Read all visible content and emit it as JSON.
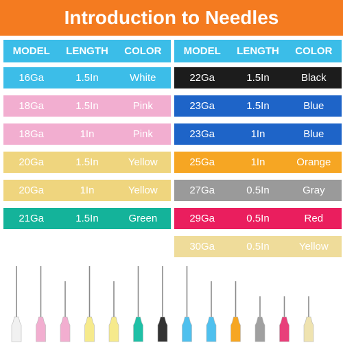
{
  "title": "Introduction to Needles",
  "left_table": {
    "headers": [
      "MODEL",
      "LENGTH",
      "COLOR"
    ],
    "rows": [
      {
        "model": "16Ga",
        "length": "1.5In",
        "color": "White",
        "bg": "#3cbde8",
        "fg": "#ffffff"
      },
      {
        "model": "18Ga",
        "length": "1.5In",
        "color": "Pink",
        "bg": "#f2aed0",
        "fg": "#ffffff"
      },
      {
        "model": "18Ga",
        "length": "1In",
        "color": "Pink",
        "bg": "#f2aed0",
        "fg": "#ffffff"
      },
      {
        "model": "20Ga",
        "length": "1.5In",
        "color": "Yellow",
        "bg": "#efd57e",
        "fg": "#ffffff"
      },
      {
        "model": "20Ga",
        "length": "1In",
        "color": "Yellow",
        "bg": "#efd57e",
        "fg": "#ffffff"
      },
      {
        "model": "21Ga",
        "length": "1.5In",
        "color": "Green",
        "bg": "#14b39a",
        "fg": "#ffffff"
      }
    ]
  },
  "right_table": {
    "headers": [
      "MODEL",
      "LENGTH",
      "COLOR"
    ],
    "rows": [
      {
        "model": "22Ga",
        "length": "1.5In",
        "color": "Black",
        "bg": "#1c1c1c",
        "fg": "#ffffff"
      },
      {
        "model": "23Ga",
        "length": "1.5In",
        "color": "Blue",
        "bg": "#1e64c8",
        "fg": "#ffffff"
      },
      {
        "model": "23Ga",
        "length": "1In",
        "color": "Blue",
        "bg": "#1e64c8",
        "fg": "#ffffff"
      },
      {
        "model": "25Ga",
        "length": "1In",
        "color": "Orange",
        "bg": "#f6a623",
        "fg": "#ffffff"
      },
      {
        "model": "27Ga",
        "length": "0.5In",
        "color": "Gray",
        "bg": "#9a9a9a",
        "fg": "#ffffff"
      },
      {
        "model": "29Ga",
        "length": "0.5In",
        "color": "Red",
        "bg": "#ea1e5e",
        "fg": "#ffffff"
      },
      {
        "model": "30Ga",
        "length": "0.5In",
        "color": "Yellow",
        "bg": "#efdc9a",
        "fg": "#ffffff"
      }
    ]
  },
  "needles": [
    {
      "hub_color": "#f1f1f1",
      "length": "1.5In"
    },
    {
      "hub_color": "#f2aed0",
      "length": "1.5In"
    },
    {
      "hub_color": "#f2aed0",
      "length": "1In"
    },
    {
      "hub_color": "#f6ea8c",
      "length": "1.5In"
    },
    {
      "hub_color": "#f6ea8c",
      "length": "1In"
    },
    {
      "hub_color": "#1fc0a6",
      "length": "1.5In"
    },
    {
      "hub_color": "#333333",
      "length": "1.5In"
    },
    {
      "hub_color": "#4fc0ee",
      "length": "1.5In"
    },
    {
      "hub_color": "#4fc0ee",
      "length": "1In"
    },
    {
      "hub_color": "#f6a623",
      "length": "1In"
    },
    {
      "hub_color": "#a0a0a0",
      "length": "0.5In"
    },
    {
      "hub_color": "#e8407a",
      "length": "0.5In"
    },
    {
      "hub_color": "#efe3b0",
      "length": "0.5In"
    }
  ]
}
